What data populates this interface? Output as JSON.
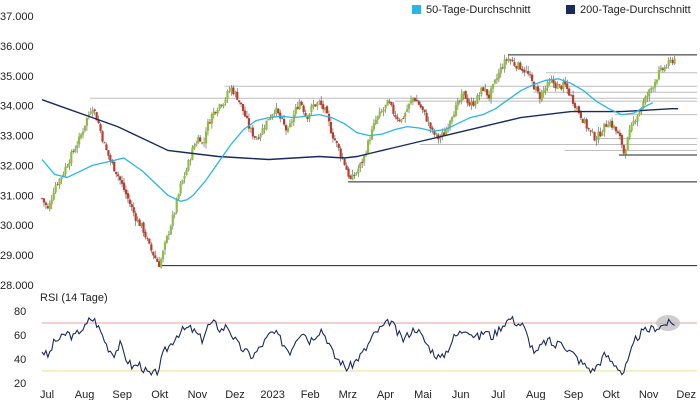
{
  "chart_data": [
    {
      "type": "candlestick",
      "title": "",
      "legend": {
        "position": "top-right",
        "items": [
          {
            "label": "50-Tage-Durchschnitt",
            "color": "#29b6e6"
          },
          {
            "label": "200-Tage-Durchschnitt",
            "color": "#1a2a5e"
          }
        ]
      },
      "colors": {
        "up": "#8fbf3f",
        "down": "#c0392b",
        "wick": "#555555",
        "ma50": "#29b6e6",
        "ma200": "#1a2a5e",
        "support_line": "#222222",
        "ref_line": "#bdbdbd"
      },
      "y_axis": {
        "ylim": [
          28000,
          37000
        ],
        "ticks": [
          "28.000",
          "29.000",
          "30.000",
          "31.000",
          "32.000",
          "33.000",
          "34.000",
          "35.000",
          "36.000",
          "37.000"
        ]
      },
      "x_axis": {
        "labels": [
          "Jul",
          "Aug",
          "Sep",
          "Okt",
          "Nov",
          "Dez",
          "2023",
          "Feb",
          "Mrz",
          "Apr",
          "Mai",
          "Jun",
          "Jul",
          "Aug",
          "Sep",
          "Okt",
          "Nov",
          "Dez"
        ],
        "day_range": [
          0,
          520
        ]
      },
      "price_path": [
        [
          0,
          30900
        ],
        [
          5,
          30500
        ],
        [
          10,
          31300
        ],
        [
          15,
          31600
        ],
        [
          25,
          32500
        ],
        [
          30,
          32900
        ],
        [
          35,
          33500
        ],
        [
          40,
          34000
        ],
        [
          45,
          33400
        ],
        [
          50,
          32600
        ],
        [
          55,
          32100
        ],
        [
          60,
          31700
        ],
        [
          65,
          31200
        ],
        [
          70,
          30700
        ],
        [
          75,
          30200
        ],
        [
          80,
          29900
        ],
        [
          85,
          29300
        ],
        [
          90,
          28900
        ],
        [
          93,
          28700
        ],
        [
          95,
          28900
        ],
        [
          100,
          29700
        ],
        [
          105,
          30400
        ],
        [
          110,
          31300
        ],
        [
          115,
          31900
        ],
        [
          120,
          32600
        ],
        [
          125,
          33000
        ],
        [
          128,
          32600
        ],
        [
          130,
          33200
        ],
        [
          135,
          33700
        ],
        [
          140,
          34000
        ],
        [
          145,
          34200
        ],
        [
          150,
          34600
        ],
        [
          155,
          34300
        ],
        [
          160,
          33800
        ],
        [
          165,
          33200
        ],
        [
          170,
          32900
        ],
        [
          175,
          33200
        ],
        [
          180,
          33600
        ],
        [
          185,
          33900
        ],
        [
          190,
          33500
        ],
        [
          195,
          33100
        ],
        [
          200,
          33700
        ],
        [
          205,
          34200
        ],
        [
          210,
          33600
        ],
        [
          215,
          34000
        ],
        [
          220,
          34100
        ],
        [
          225,
          33800
        ],
        [
          230,
          33100
        ],
        [
          235,
          32600
        ],
        [
          240,
          32100
        ],
        [
          245,
          31500
        ],
        [
          250,
          31800
        ],
        [
          255,
          32200
        ],
        [
          260,
          32900
        ],
        [
          265,
          33500
        ],
        [
          270,
          33800
        ],
        [
          275,
          34100
        ],
        [
          280,
          33700
        ],
        [
          285,
          33500
        ],
        [
          290,
          33900
        ],
        [
          295,
          34300
        ],
        [
          300,
          34000
        ],
        [
          305,
          33600
        ],
        [
          310,
          33100
        ],
        [
          315,
          32900
        ],
        [
          320,
          33100
        ],
        [
          325,
          33700
        ],
        [
          330,
          34000
        ],
        [
          335,
          34400
        ],
        [
          340,
          34000
        ],
        [
          345,
          34200
        ],
        [
          350,
          34600
        ],
        [
          355,
          34300
        ],
        [
          360,
          34800
        ],
        [
          365,
          35300
        ],
        [
          370,
          35600
        ],
        [
          375,
          35400
        ],
        [
          380,
          35300
        ],
        [
          385,
          35100
        ],
        [
          390,
          34700
        ],
        [
          395,
          34300
        ],
        [
          400,
          34600
        ],
        [
          405,
          34800
        ],
        [
          410,
          34600
        ],
        [
          415,
          34700
        ],
        [
          420,
          34300
        ],
        [
          425,
          33900
        ],
        [
          430,
          33500
        ],
        [
          435,
          33100
        ],
        [
          440,
          32900
        ],
        [
          445,
          33200
        ],
        [
          450,
          33500
        ],
        [
          455,
          33200
        ],
        [
          460,
          32800
        ],
        [
          462,
          32400
        ],
        [
          466,
          33000
        ],
        [
          470,
          33500
        ],
        [
          475,
          33900
        ],
        [
          480,
          34300
        ],
        [
          485,
          34700
        ],
        [
          490,
          35100
        ],
        [
          495,
          35300
        ],
        [
          500,
          35500
        ],
        [
          503,
          35600
        ]
      ],
      "ma50_path": [
        [
          0,
          32200
        ],
        [
          10,
          31700
        ],
        [
          20,
          31600
        ],
        [
          30,
          31800
        ],
        [
          40,
          32000
        ],
        [
          50,
          32100
        ],
        [
          60,
          32200
        ],
        [
          65,
          32250
        ],
        [
          70,
          32100
        ],
        [
          80,
          31800
        ],
        [
          90,
          31400
        ],
        [
          100,
          31000
        ],
        [
          110,
          30800
        ],
        [
          115,
          30850
        ],
        [
          120,
          31000
        ],
        [
          130,
          31500
        ],
        [
          140,
          32100
        ],
        [
          150,
          32700
        ],
        [
          160,
          33200
        ],
        [
          170,
          33500
        ],
        [
          180,
          33600
        ],
        [
          190,
          33650
        ],
        [
          200,
          33600
        ],
        [
          210,
          33650
        ],
        [
          220,
          33700
        ],
        [
          230,
          33600
        ],
        [
          240,
          33400
        ],
        [
          250,
          33100
        ],
        [
          260,
          33000
        ],
        [
          270,
          33050
        ],
        [
          280,
          33200
        ],
        [
          290,
          33300
        ],
        [
          300,
          33250
        ],
        [
          310,
          33150
        ],
        [
          320,
          33200
        ],
        [
          330,
          33400
        ],
        [
          340,
          33600
        ],
        [
          350,
          33700
        ],
        [
          360,
          33900
        ],
        [
          370,
          34200
        ],
        [
          380,
          34500
        ],
        [
          390,
          34700
        ],
        [
          400,
          34850
        ],
        [
          410,
          34900
        ],
        [
          420,
          34750
        ],
        [
          430,
          34500
        ],
        [
          440,
          34150
        ],
        [
          450,
          33900
        ],
        [
          460,
          33700
        ],
        [
          470,
          33750
        ],
        [
          480,
          34000
        ],
        [
          485,
          34100
        ]
      ],
      "ma200_path": [
        [
          0,
          34200
        ],
        [
          20,
          33900
        ],
        [
          40,
          33600
        ],
        [
          60,
          33300
        ],
        [
          80,
          32900
        ],
        [
          100,
          32500
        ],
        [
          120,
          32400
        ],
        [
          140,
          32300
        ],
        [
          160,
          32250
        ],
        [
          180,
          32200
        ],
        [
          200,
          32250
        ],
        [
          220,
          32300
        ],
        [
          240,
          32250
        ],
        [
          250,
          32300
        ],
        [
          260,
          32400
        ],
        [
          280,
          32600
        ],
        [
          300,
          32800
        ],
        [
          320,
          33000
        ],
        [
          340,
          33200
        ],
        [
          360,
          33400
        ],
        [
          380,
          33600
        ],
        [
          400,
          33700
        ],
        [
          420,
          33800
        ],
        [
          440,
          33800
        ],
        [
          460,
          33800
        ],
        [
          480,
          33850
        ],
        [
          500,
          33900
        ],
        [
          505,
          33900
        ]
      ],
      "support_lines": [
        {
          "value": 35700,
          "from_day": 370,
          "dark": true
        },
        {
          "value": 28650,
          "from_day": 92,
          "dark": true
        },
        {
          "value": 31450,
          "from_day": 243,
          "dark": true
        },
        {
          "value": 32350,
          "from_day": 458,
          "dark": true
        }
      ],
      "reference_lines": [
        {
          "value": 35100,
          "from_day": 400
        },
        {
          "value": 34650,
          "from_day": 145
        },
        {
          "value": 34450,
          "from_day": 390
        },
        {
          "value": 34250,
          "from_day": 38
        },
        {
          "value": 34150,
          "from_day": 280
        },
        {
          "value": 33700,
          "from_day": 455
        },
        {
          "value": 32900,
          "from_day": 440
        },
        {
          "value": 32700,
          "from_day": 300
        },
        {
          "value": 32500,
          "from_day": 415
        }
      ]
    },
    {
      "type": "line",
      "title": "RSI (14 Tage)",
      "ylim": [
        20,
        80
      ],
      "y_ticks": [
        "20",
        "40",
        "60",
        "80"
      ],
      "overbought": 70,
      "oversold": 30,
      "colors": {
        "line": "#1a2a5e",
        "overbought": "#e6a0a0",
        "oversold": "#e8e08a",
        "highlight": "#bdbdbd"
      },
      "highlight_day": 497,
      "x_labels": [
        "Jul",
        "Aug",
        "Sep",
        "Okt",
        "Nov",
        "Dez",
        "2023",
        "Feb",
        "Mrz",
        "Apr",
        "Mai",
        "Jun",
        "Jul",
        "Aug",
        "Sep",
        "Okt",
        "Nov",
        "Dez"
      ],
      "rsi_path": [
        [
          0,
          47
        ],
        [
          5,
          42
        ],
        [
          10,
          55
        ],
        [
          15,
          57
        ],
        [
          20,
          62
        ],
        [
          25,
          58
        ],
        [
          30,
          64
        ],
        [
          35,
          67
        ],
        [
          38,
          74
        ],
        [
          42,
          72
        ],
        [
          47,
          62
        ],
        [
          52,
          50
        ],
        [
          57,
          44
        ],
        [
          62,
          52
        ],
        [
          67,
          40
        ],
        [
          72,
          33
        ],
        [
          77,
          36
        ],
        [
          82,
          30
        ],
        [
          87,
          26
        ],
        [
          92,
          30
        ],
        [
          97,
          46
        ],
        [
          102,
          52
        ],
        [
          107,
          60
        ],
        [
          112,
          64
        ],
        [
          117,
          66
        ],
        [
          122,
          62
        ],
        [
          127,
          56
        ],
        [
          132,
          68
        ],
        [
          137,
          70
        ],
        [
          142,
          64
        ],
        [
          147,
          68
        ],
        [
          152,
          58
        ],
        [
          157,
          50
        ],
        [
          162,
          46
        ],
        [
          167,
          42
        ],
        [
          172,
          48
        ],
        [
          177,
          55
        ],
        [
          182,
          62
        ],
        [
          187,
          60
        ],
        [
          192,
          52
        ],
        [
          197,
          46
        ],
        [
          202,
          58
        ],
        [
          207,
          64
        ],
        [
          212,
          55
        ],
        [
          217,
          60
        ],
        [
          222,
          65
        ],
        [
          227,
          55
        ],
        [
          232,
          42
        ],
        [
          237,
          38
        ],
        [
          242,
          32
        ],
        [
          247,
          36
        ],
        [
          252,
          42
        ],
        [
          257,
          48
        ],
        [
          262,
          58
        ],
        [
          267,
          64
        ],
        [
          272,
          68
        ],
        [
          277,
          72
        ],
        [
          282,
          62
        ],
        [
          287,
          56
        ],
        [
          292,
          62
        ],
        [
          297,
          66
        ],
        [
          302,
          58
        ],
        [
          307,
          50
        ],
        [
          312,
          44
        ],
        [
          317,
          40
        ],
        [
          322,
          48
        ],
        [
          327,
          58
        ],
        [
          332,
          62
        ],
        [
          337,
          66
        ],
        [
          342,
          60
        ],
        [
          347,
          58
        ],
        [
          352,
          64
        ],
        [
          357,
          58
        ],
        [
          362,
          64
        ],
        [
          367,
          70
        ],
        [
          372,
          74
        ],
        [
          377,
          70
        ],
        [
          382,
          68
        ],
        [
          387,
          54
        ],
        [
          392,
          44
        ],
        [
          397,
          52
        ],
        [
          402,
          56
        ],
        [
          407,
          50
        ],
        [
          412,
          56
        ],
        [
          417,
          48
        ],
        [
          422,
          44
        ],
        [
          427,
          38
        ],
        [
          432,
          34
        ],
        [
          437,
          30
        ],
        [
          442,
          36
        ],
        [
          447,
          44
        ],
        [
          452,
          38
        ],
        [
          457,
          34
        ],
        [
          461,
          27
        ],
        [
          466,
          40
        ],
        [
          471,
          56
        ],
        [
          476,
          62
        ],
        [
          481,
          64
        ],
        [
          486,
          66
        ],
        [
          491,
          67
        ],
        [
          496,
          70
        ],
        [
          500,
          69
        ],
        [
          503,
          71
        ]
      ]
    }
  ]
}
